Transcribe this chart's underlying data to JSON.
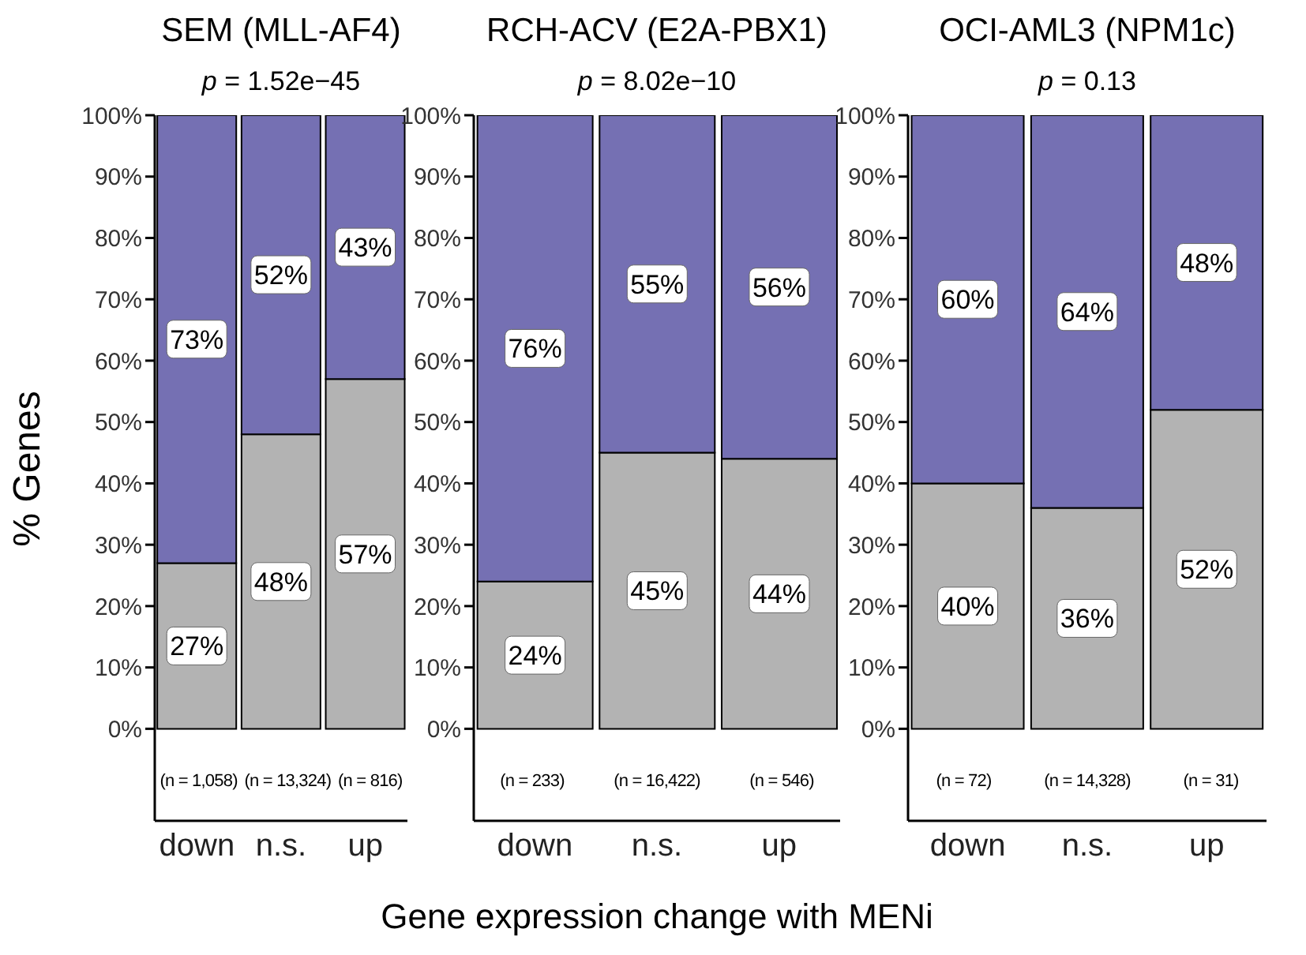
{
  "chart_data": [
    {
      "type": "bar",
      "stacked": true,
      "title": "SEM (MLL-AF4)",
      "ylabel": "% Genes",
      "categories": [
        "down",
        "n.s.",
        "up"
      ],
      "ylim": [
        -15,
        100
      ],
      "yticks": [
        {
          "value": 0,
          "label": "0%"
        },
        {
          "value": 10,
          "label": "10%"
        },
        {
          "value": 20,
          "label": "20%"
        },
        {
          "value": 30,
          "label": "30%"
        },
        {
          "value": 40,
          "label": "40%"
        },
        {
          "value": 50,
          "label": "50%"
        },
        {
          "value": 60,
          "label": "60%"
        },
        {
          "value": 70,
          "label": "70%"
        },
        {
          "value": 80,
          "label": "80%"
        },
        {
          "value": 90,
          "label": "90%"
        },
        {
          "value": 100,
          "label": "100%"
        }
      ],
      "series": [
        {
          "color": "#b3b3b3",
          "values": [
            27,
            48,
            57
          ],
          "value_labels": [
            "27%",
            "48%",
            "57%"
          ]
        },
        {
          "color": "#7570b3",
          "values": [
            73,
            52,
            43
          ],
          "value_labels": [
            "73%",
            "52%",
            "43%"
          ]
        }
      ],
      "annotations": [
        "p = 1.52e−45",
        "(n = 1,058)",
        "(n = 13,324)",
        "(n = 816)"
      ]
    },
    {
      "type": "bar",
      "stacked": true,
      "title": "RCH-ACV (E2A-PBX1)",
      "xlabel": "Gene expression change with MENi",
      "categories": [
        "down",
        "n.s.",
        "up"
      ],
      "ylim": [
        -15,
        100
      ],
      "yticks": [
        {
          "value": 0,
          "label": "0%"
        },
        {
          "value": 10,
          "label": "10%"
        },
        {
          "value": 20,
          "label": "20%"
        },
        {
          "value": 30,
          "label": "30%"
        },
        {
          "value": 40,
          "label": "40%"
        },
        {
          "value": 50,
          "label": "50%"
        },
        {
          "value": 60,
          "label": "60%"
        },
        {
          "value": 70,
          "label": "70%"
        },
        {
          "value": 80,
          "label": "80%"
        },
        {
          "value": 90,
          "label": "90%"
        },
        {
          "value": 100,
          "label": "100%"
        }
      ],
      "series": [
        {
          "color": "#b3b3b3",
          "values": [
            24,
            45,
            44
          ],
          "value_labels": [
            "24%",
            "45%",
            "44%"
          ]
        },
        {
          "color": "#7570b3",
          "values": [
            76,
            55,
            56
          ],
          "value_labels": [
            "76%",
            "55%",
            "56%"
          ]
        }
      ],
      "annotations": [
        "p = 8.02e−10",
        "(n = 233)",
        "(n = 16,422)",
        "(n = 546)"
      ]
    },
    {
      "type": "bar",
      "stacked": true,
      "title": "OCI-AML3 (NPM1c)",
      "categories": [
        "down",
        "n.s.",
        "up"
      ],
      "ylim": [
        -15,
        100
      ],
      "yticks": [
        {
          "value": 0,
          "label": "0%"
        },
        {
          "value": 10,
          "label": "10%"
        },
        {
          "value": 20,
          "label": "20%"
        },
        {
          "value": 30,
          "label": "30%"
        },
        {
          "value": 40,
          "label": "40%"
        },
        {
          "value": 50,
          "label": "50%"
        },
        {
          "value": 60,
          "label": "60%"
        },
        {
          "value": 70,
          "label": "70%"
        },
        {
          "value": 80,
          "label": "80%"
        },
        {
          "value": 90,
          "label": "90%"
        },
        {
          "value": 100,
          "label": "100%"
        }
      ],
      "series": [
        {
          "color": "#b3b3b3",
          "values": [
            40,
            36,
            52
          ],
          "value_labels": [
            "40%",
            "36%",
            "52%"
          ]
        },
        {
          "color": "#7570b3",
          "values": [
            60,
            64,
            48
          ],
          "value_labels": [
            "60%",
            "64%",
            "48%"
          ]
        }
      ],
      "annotations": [
        "p = 0.13",
        "(n = 72)",
        "(n = 14,328)",
        "(n = 31)"
      ]
    }
  ]
}
